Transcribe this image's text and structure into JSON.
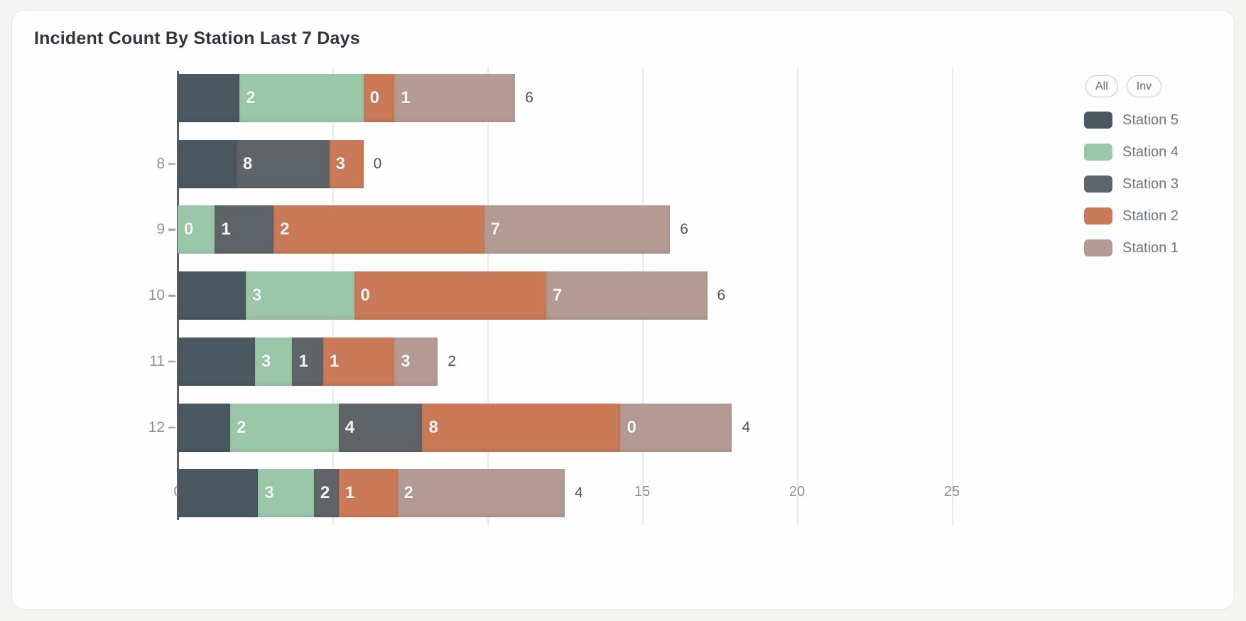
{
  "chart": {
    "title": "Incident Count By Station Last 7 Days"
  },
  "legend": {
    "buttons": [
      {
        "id": "all",
        "label": "All"
      },
      {
        "id": "inv",
        "label": "Inv"
      }
    ],
    "items": [
      "Station 5",
      "Station 4",
      "Station 3",
      "Station 2",
      "Station 1"
    ]
  },
  "chart_data": {
    "type": "bar",
    "orientation": "horizontal",
    "stacked": true,
    "title": "Incident Count By Station Last 7 Days",
    "xlabel": "",
    "ylabel": "",
    "xlim": [
      0,
      27
    ],
    "grid": true,
    "legend_position": "top-right",
    "series_order": [
      "Station 5",
      "Station 4",
      "Station 3",
      "Station 2",
      "Station 1"
    ],
    "colors": {
      "Station 5": "#4a5862",
      "Station 4": "#9bc7a9",
      "Station 3": "#5f6468",
      "Station 2": "#ca7a57",
      "Station 1": "#b39b93"
    },
    "axis": {
      "x_ticks_visible": [
        {
          "value": 0,
          "label": "0"
        },
        {
          "value": 15,
          "label": "15"
        },
        {
          "value": 20,
          "label": "20"
        },
        {
          "value": 25,
          "label": "25"
        }
      ],
      "gridline_values": [
        5,
        10,
        15,
        20,
        25
      ]
    },
    "rows": [
      {
        "y_label": "",
        "end_label": "6",
        "segments": [
          {
            "station": "Station 5",
            "value": 2.0,
            "label": ""
          },
          {
            "station": "Station 4",
            "value": 4.0,
            "label": "2"
          },
          {
            "station": "Station 2",
            "value": 1.0,
            "label": "0"
          },
          {
            "station": "Station 1",
            "value": 3.9,
            "label": "1"
          }
        ]
      },
      {
        "y_label": "8",
        "end_label": "0",
        "segments": [
          {
            "station": "Station 5",
            "value": 1.9,
            "label": ""
          },
          {
            "station": "Station 3",
            "value": 3.0,
            "label": "8"
          },
          {
            "station": "Station 2",
            "value": 1.1,
            "label": "3"
          }
        ]
      },
      {
        "y_label": "9",
        "end_label": "6",
        "segments": [
          {
            "station": "Station 4",
            "value": 1.2,
            "label": "0"
          },
          {
            "station": "Station 3",
            "value": 1.9,
            "label": "1"
          },
          {
            "station": "Station 2",
            "value": 6.8,
            "label": "2"
          },
          {
            "station": "Station 1",
            "value": 6.0,
            "label": "7"
          }
        ]
      },
      {
        "y_label": "10",
        "end_label": "6",
        "segments": [
          {
            "station": "Station 5",
            "value": 2.2,
            "label": ""
          },
          {
            "station": "Station 4",
            "value": 3.5,
            "label": "3"
          },
          {
            "station": "Station 2",
            "value": 6.2,
            "label": "0"
          },
          {
            "station": "Station 1",
            "value": 5.2,
            "label": "7"
          }
        ]
      },
      {
        "y_label": "11",
        "end_label": "2",
        "segments": [
          {
            "station": "Station 5",
            "value": 2.5,
            "label": ""
          },
          {
            "station": "Station 4",
            "value": 1.2,
            "label": "3"
          },
          {
            "station": "Station 3",
            "value": 1.0,
            "label": "1"
          },
          {
            "station": "Station 2",
            "value": 2.3,
            "label": "1"
          },
          {
            "station": "Station 1",
            "value": 1.4,
            "label": "3"
          }
        ]
      },
      {
        "y_label": "12",
        "end_label": "4",
        "segments": [
          {
            "station": "Station 5",
            "value": 1.7,
            "label": ""
          },
          {
            "station": "Station 4",
            "value": 3.5,
            "label": "2"
          },
          {
            "station": "Station 3",
            "value": 2.7,
            "label": "4"
          },
          {
            "station": "Station 2",
            "value": 6.4,
            "label": "8"
          },
          {
            "station": "Station 1",
            "value": 3.6,
            "label": "0"
          }
        ]
      },
      {
        "y_label": "",
        "end_label": "4",
        "segments": [
          {
            "station": "Station 5",
            "value": 2.6,
            "label": ""
          },
          {
            "station": "Station 4",
            "value": 1.8,
            "label": "3"
          },
          {
            "station": "Station 3",
            "value": 0.8,
            "label": "2"
          },
          {
            "station": "Station 2",
            "value": 1.9,
            "label": "1"
          },
          {
            "station": "Station 1",
            "value": 5.4,
            "label": "2"
          }
        ]
      }
    ]
  }
}
